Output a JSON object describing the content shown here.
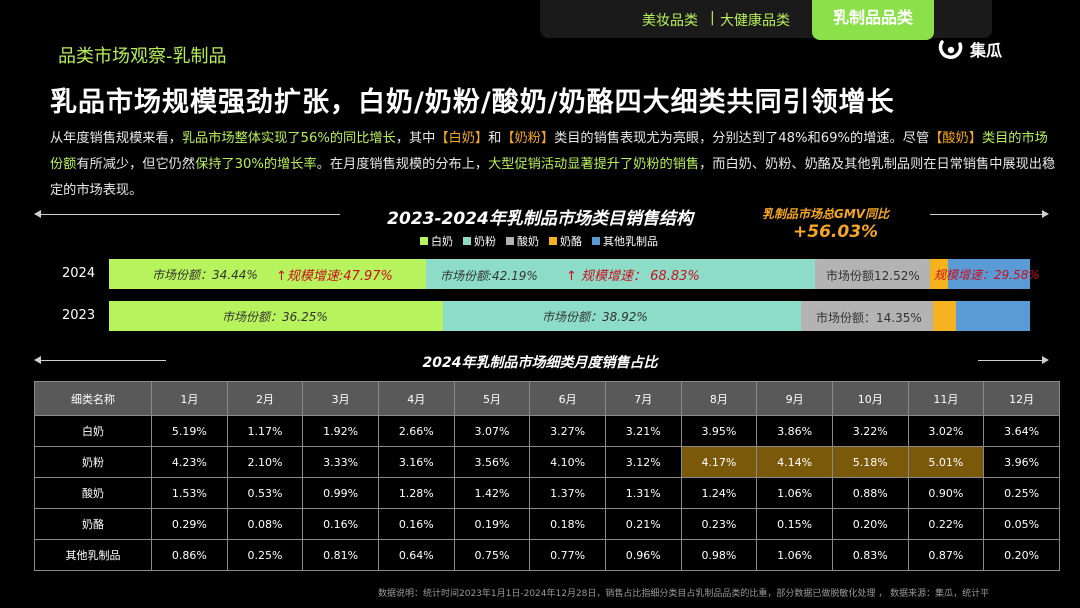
{
  "tabs": {
    "inactive_1": "美妆品类",
    "separator": "|",
    "inactive_2": "大健康品类",
    "active": "乳制品品类"
  },
  "section_title": "品类市场观察-乳制品",
  "logo_text": "集瓜",
  "headline": "乳品市场规模强劲扩张，白奶/奶粉/酸奶/奶酪四大细类共同引领增长",
  "paragraph": {
    "p1": "从年度销售规模来看，",
    "p2": "乳品市场整体实现了56%的同比增长",
    "p3": "，其中",
    "p4": "【白奶】",
    "p5": "和",
    "p6": "【奶粉】",
    "p7": "类目的销售表现尤为亮眼，分别达到了48%和69%的增速。尽管",
    "p8": "【酸奶】",
    "p9": "类目的市场份额",
    "p10": "有所减少，但它仍然",
    "p11": "保持了30%的增长率",
    "p12": "。在月度销售规模的分布上，",
    "p13": "大型促销活动显著提升了奶粉的销售",
    "p14": "，而白奶、奶粉、奶酪及其他乳制品则在日常销售中展现出稳定的市场表现。"
  },
  "chart_data": {
    "type": "bar",
    "title": "2023-2024年乳制品市场类目销售结构",
    "gmv_label": "乳制品市场总GMV同比",
    "gmv_value": "+56.03%",
    "legend": [
      "白奶",
      "奶粉",
      "酸奶",
      "奶酪",
      "其他乳制品"
    ],
    "colors": {
      "白奶": "#b7f35c",
      "奶粉": "#8ddcc8",
      "酸奶": "#b3b3b3",
      "奶酪": "#f5b21f",
      "其他乳制品": "#5b9bd5"
    },
    "categories": [
      "2024",
      "2023"
    ],
    "series": [
      {
        "name": "白奶",
        "values": [
          34.44,
          36.25
        ]
      },
      {
        "name": "奶粉",
        "values": [
          42.19,
          38.92
        ]
      },
      {
        "name": "酸奶",
        "values": [
          12.52,
          14.35
        ]
      },
      {
        "name": "奶酪",
        "values": [
          2.0,
          2.5
        ]
      },
      {
        "name": "其他乳制品",
        "values": [
          8.85,
          7.98
        ]
      }
    ],
    "labels_2024": {
      "milk_share": "市场份额：34.44%",
      "milk_growth": "↑规模增速:47.97%",
      "powder_share": "市场份额:42.19%",
      "powder_growth": "↑ 规模增速： 68.83%",
      "yogurt_share": "市场份额12.52%",
      "yogurt_growth": "规模增速：29.58%"
    },
    "labels_2023": {
      "milk_share": "市场份额：36.25%",
      "powder_share": "市场份额：38.92%",
      "yogurt_share": "市场份额：14.35%"
    }
  },
  "table": {
    "title": "2024年乳制品市场细类月度销售占比",
    "header": [
      "细类名称",
      "1月",
      "2月",
      "3月",
      "4月",
      "5月",
      "6月",
      "7月",
      "8月",
      "9月",
      "10月",
      "11月",
      "12月"
    ],
    "rows": [
      {
        "name": "白奶",
        "values": [
          "5.19%",
          "1.17%",
          "1.92%",
          "2.66%",
          "3.07%",
          "3.27%",
          "3.21%",
          "3.95%",
          "3.86%",
          "3.22%",
          "3.02%",
          "3.64%"
        ],
        "highlight": []
      },
      {
        "name": "奶粉",
        "values": [
          "4.23%",
          "2.10%",
          "3.33%",
          "3.16%",
          "3.56%",
          "4.10%",
          "3.12%",
          "4.17%",
          "4.14%",
          "5.18%",
          "5.01%",
          "3.96%"
        ],
        "highlight": [
          7,
          8,
          9,
          10
        ]
      },
      {
        "name": "酸奶",
        "values": [
          "1.53%",
          "0.53%",
          "0.99%",
          "1.28%",
          "1.42%",
          "1.37%",
          "1.31%",
          "1.24%",
          "1.06%",
          "0.88%",
          "0.90%",
          "0.25%"
        ],
        "highlight": []
      },
      {
        "name": "奶酪",
        "values": [
          "0.29%",
          "0.08%",
          "0.16%",
          "0.16%",
          "0.19%",
          "0.18%",
          "0.21%",
          "0.23%",
          "0.15%",
          "0.20%",
          "0.22%",
          "0.05%"
        ],
        "highlight": []
      },
      {
        "name": "其他乳制品",
        "values": [
          "0.86%",
          "0.25%",
          "0.81%",
          "0.64%",
          "0.75%",
          "0.77%",
          "0.96%",
          "0.98%",
          "1.06%",
          "0.83%",
          "0.87%",
          "0.20%"
        ],
        "highlight": []
      }
    ]
  },
  "footnote": "数据说明：统计时间2023年1月1日-2024年12月28日，销售占比指细分类目占乳制品品类的比重，部分数据已做脱敏化处理 ， 数据来源：集瓜，统计平"
}
